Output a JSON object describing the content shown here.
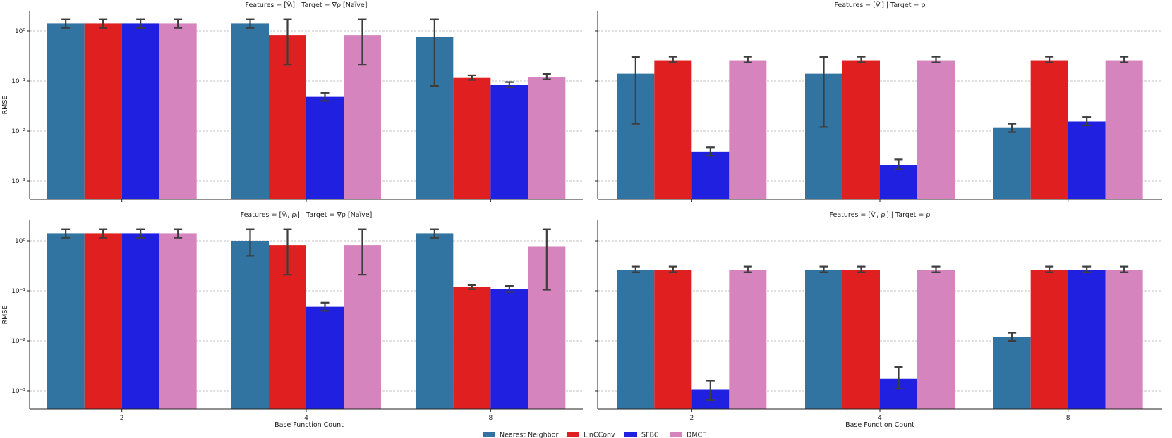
{
  "figure": {
    "legend": [
      {
        "name": "Nearest Neighbor",
        "color": "#3274a1"
      },
      {
        "name": "LinCConv",
        "color": "#e02020"
      },
      {
        "name": "SFBC",
        "color": "#2020e0"
      },
      {
        "name": "DMCF",
        "color": "#d684bd"
      }
    ]
  },
  "chart_data": [
    {
      "type": "bar",
      "title": "Features = [V̂ᵢ] | Target = ∇ρ [Naïve]",
      "xlabel": "",
      "ylabel": "RMSE",
      "yscale": "log",
      "ylim": [
        0.0004,
        2.5
      ],
      "yticks": [
        [
          "10⁰",
          1
        ],
        [
          "10⁻¹",
          0.1
        ],
        [
          "10⁻²",
          0.01
        ],
        [
          "10⁻³",
          0.001
        ]
      ],
      "categories": [
        "2",
        "4",
        "8"
      ],
      "series": [
        {
          "name": "Nearest Neighbor",
          "values": [
            1.41,
            1.41,
            0.75
          ],
          "err_low": [
            1.15,
            1.15,
            0.08
          ],
          "err_high": [
            1.7,
            1.7,
            1.7
          ]
        },
        {
          "name": "LinCConv",
          "values": [
            1.41,
            0.82,
            0.115
          ],
          "err_low": [
            1.15,
            0.21,
            0.105
          ],
          "err_high": [
            1.7,
            1.7,
            0.13
          ]
        },
        {
          "name": "SFBC",
          "values": [
            1.41,
            0.048,
            0.083
          ],
          "err_low": [
            1.15,
            0.04,
            0.075
          ],
          "err_high": [
            1.7,
            0.058,
            0.095
          ]
        },
        {
          "name": "DMCF",
          "values": [
            1.41,
            0.82,
            0.12
          ],
          "err_low": [
            1.15,
            0.21,
            0.108
          ],
          "err_high": [
            1.7,
            1.7,
            0.138
          ]
        }
      ]
    },
    {
      "type": "bar",
      "title": "Features = [V̂ᵢ] | Target = ρ",
      "xlabel": "",
      "ylabel": "",
      "yscale": "log",
      "ylim": [
        0.0004,
        2.5
      ],
      "yticks": [],
      "categories": [
        "2",
        "4",
        "8"
      ],
      "series": [
        {
          "name": "Nearest Neighbor",
          "values": [
            0.14,
            0.14,
            0.0115
          ],
          "err_low": [
            0.014,
            0.012,
            0.0095
          ],
          "err_high": [
            0.3,
            0.3,
            0.014
          ]
        },
        {
          "name": "LinCConv",
          "values": [
            0.26,
            0.26,
            0.26
          ],
          "err_low": [
            0.235,
            0.235,
            0.235
          ],
          "err_high": [
            0.305,
            0.305,
            0.305
          ]
        },
        {
          "name": "SFBC",
          "values": [
            0.0038,
            0.0021,
            0.0155
          ],
          "err_low": [
            0.0032,
            0.0017,
            0.013
          ],
          "err_high": [
            0.0047,
            0.0027,
            0.019
          ]
        },
        {
          "name": "DMCF",
          "values": [
            0.26,
            0.26,
            0.26
          ],
          "err_low": [
            0.235,
            0.235,
            0.235
          ],
          "err_high": [
            0.305,
            0.305,
            0.305
          ]
        }
      ]
    },
    {
      "type": "bar",
      "title": "Features = [V̂ᵢ, ρᵢ] | Target = ∇ρ [Naïve]",
      "xlabel": "",
      "ylabel": "RMSE",
      "yscale": "log",
      "ylim": [
        0.0004,
        2.5
      ],
      "yticks": [
        [
          "10⁰",
          1
        ],
        [
          "10⁻¹",
          0.1
        ],
        [
          "10⁻²",
          0.01
        ],
        [
          "10⁻³",
          0.001
        ]
      ],
      "categories": [
        "2",
        "4",
        "8"
      ],
      "series": [
        {
          "name": "Nearest Neighbor",
          "values": [
            1.41,
            1.0,
            1.41
          ],
          "err_low": [
            1.15,
            0.5,
            1.15
          ],
          "err_high": [
            1.7,
            1.7,
            1.7
          ]
        },
        {
          "name": "LinCConv",
          "values": [
            1.41,
            0.82,
            0.118
          ],
          "err_low": [
            1.15,
            0.21,
            0.108
          ],
          "err_high": [
            1.7,
            1.7,
            0.13
          ]
        },
        {
          "name": "SFBC",
          "values": [
            1.41,
            0.048,
            0.108
          ],
          "err_low": [
            1.15,
            0.04,
            0.095
          ],
          "err_high": [
            1.7,
            0.058,
            0.125
          ]
        },
        {
          "name": "DMCF",
          "values": [
            1.41,
            0.82,
            0.76
          ],
          "err_low": [
            1.15,
            0.21,
            0.105
          ],
          "err_high": [
            1.7,
            1.7,
            1.7
          ]
        }
      ]
    },
    {
      "type": "bar",
      "title": "Features = [V̂ᵢ, ρᵢ] | Target = ρ",
      "xlabel": "Base Function Count",
      "ylabel": "",
      "yscale": "log",
      "ylim": [
        0.0004,
        2.5
      ],
      "yticks": [],
      "categories": [
        "2",
        "4",
        "8"
      ],
      "series": [
        {
          "name": "Nearest Neighbor",
          "values": [
            0.26,
            0.26,
            0.012
          ],
          "err_low": [
            0.235,
            0.235,
            0.01
          ],
          "err_high": [
            0.305,
            0.305,
            0.0145
          ]
        },
        {
          "name": "LinCConv",
          "values": [
            0.26,
            0.26,
            0.26
          ],
          "err_low": [
            0.235,
            0.235,
            0.235
          ],
          "err_high": [
            0.305,
            0.305,
            0.305
          ]
        },
        {
          "name": "SFBC",
          "values": [
            0.00105,
            0.00175,
            0.26
          ],
          "err_low": [
            0.00065,
            0.0011,
            0.235
          ],
          "err_high": [
            0.0016,
            0.003,
            0.305
          ]
        },
        {
          "name": "DMCF",
          "values": [
            0.26,
            0.26,
            0.26
          ],
          "err_low": [
            0.235,
            0.235,
            0.235
          ],
          "err_high": [
            0.305,
            0.305,
            0.305
          ]
        }
      ]
    }
  ],
  "bottom_labels": {
    "left_xlabel": "Base Function Count",
    "right_xlabel": "Base Function Count"
  }
}
